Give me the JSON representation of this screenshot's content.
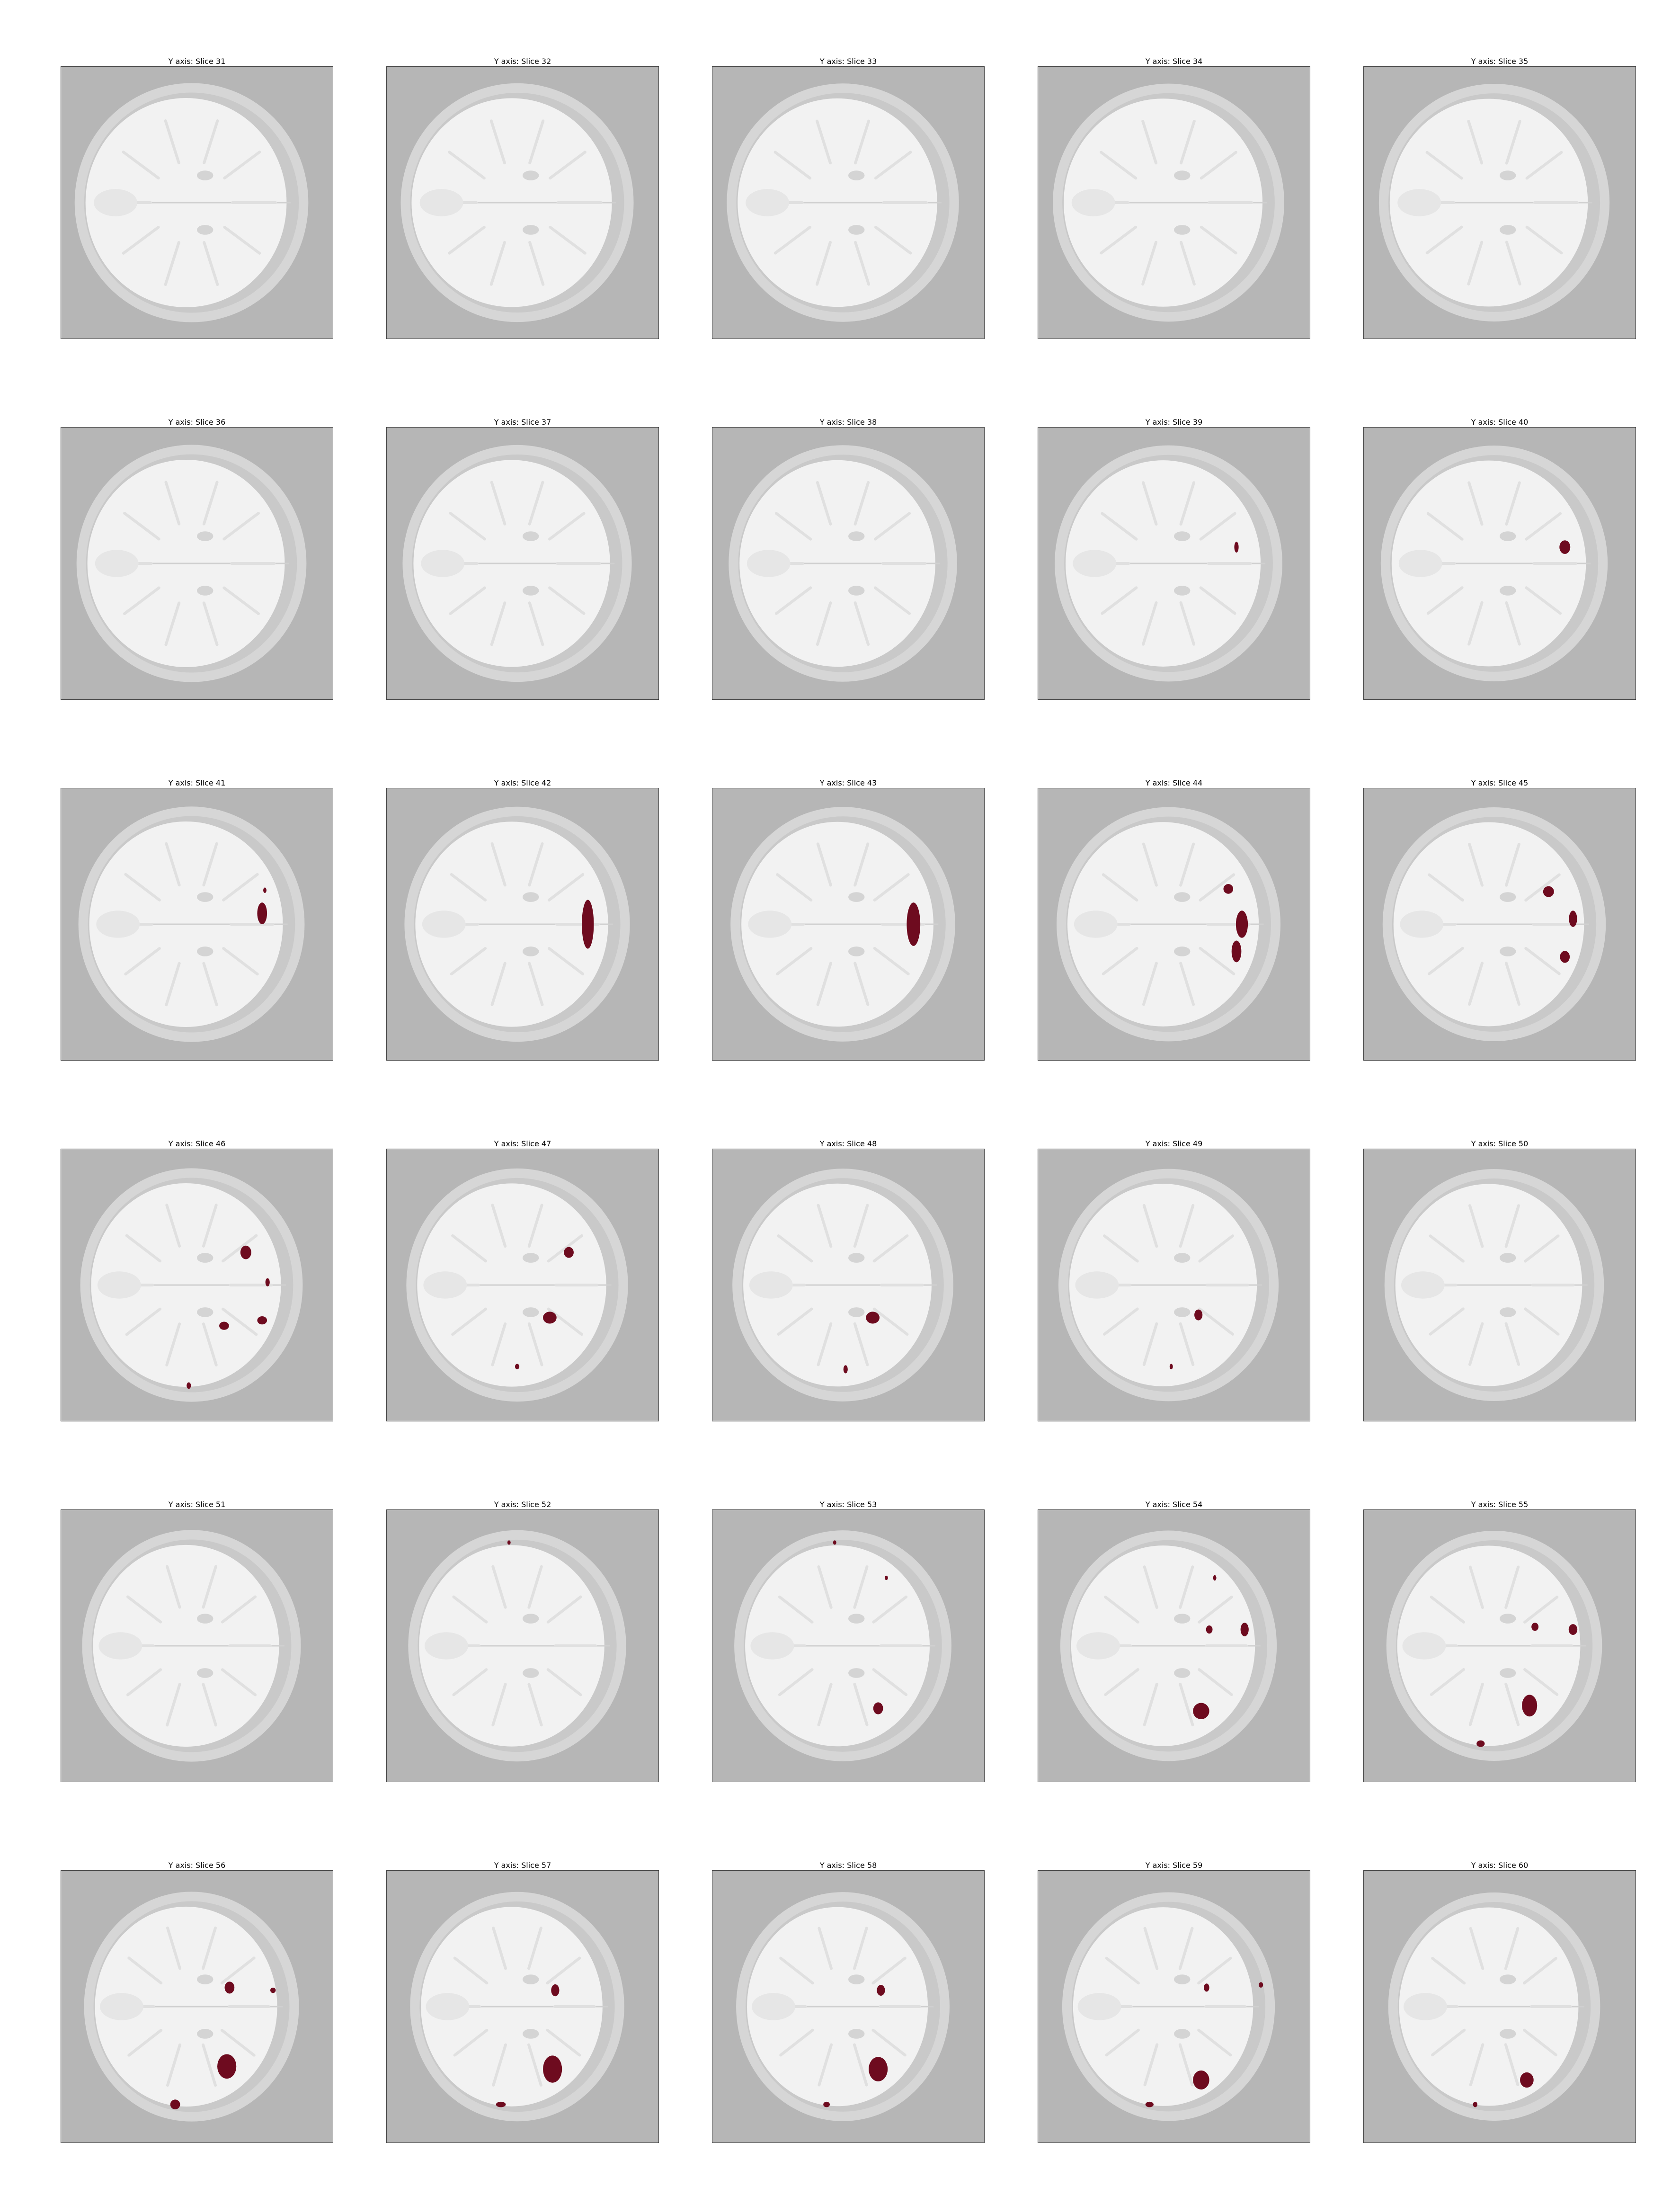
{
  "figure": {
    "axis_name": "Y axis",
    "colors": {
      "background": "#b6b6b6",
      "head_outline": "#d6d6d6",
      "brain": "#f2f2f2",
      "overlay": "#6e0b1f"
    },
    "panels": [
      {
        "title": "Y axis: Slice 31",
        "slice": 31,
        "blobs": []
      },
      {
        "title": "Y axis: Slice 32",
        "slice": 32,
        "blobs": []
      },
      {
        "title": "Y axis: Slice 33",
        "slice": 33,
        "blobs": []
      },
      {
        "title": "Y axis: Slice 34",
        "slice": 34,
        "blobs": []
      },
      {
        "title": "Y axis: Slice 35",
        "slice": 35,
        "blobs": []
      },
      {
        "title": "Y axis: Slice 36",
        "slice": 36,
        "blobs": []
      },
      {
        "title": "Y axis: Slice 37",
        "slice": 37,
        "blobs": []
      },
      {
        "title": "Y axis: Slice 38",
        "slice": 38,
        "blobs": []
      },
      {
        "title": "Y axis: Slice 39",
        "slice": 39,
        "blobs": [
          [
            0.73,
            0.44,
            0.008,
            0.02
          ]
        ]
      },
      {
        "title": "Y axis: Slice 40",
        "slice": 40,
        "blobs": [
          [
            0.74,
            0.44,
            0.02,
            0.025
          ]
        ]
      },
      {
        "title": "Y axis: Slice 41",
        "slice": 41,
        "blobs": [
          [
            0.74,
            0.46,
            0.018,
            0.04
          ],
          [
            0.75,
            0.375,
            0.006,
            0.01
          ]
        ]
      },
      {
        "title": "Y axis: Slice 42",
        "slice": 42,
        "blobs": [
          [
            0.74,
            0.5,
            0.022,
            0.09
          ]
        ]
      },
      {
        "title": "Y axis: Slice 43",
        "slice": 43,
        "blobs": [
          [
            0.74,
            0.5,
            0.025,
            0.08
          ]
        ]
      },
      {
        "title": "Y axis: Slice 44",
        "slice": 44,
        "blobs": [
          [
            0.7,
            0.37,
            0.018,
            0.018
          ],
          [
            0.75,
            0.5,
            0.022,
            0.05
          ],
          [
            0.73,
            0.6,
            0.018,
            0.04
          ]
        ]
      },
      {
        "title": "Y axis: Slice 45",
        "slice": 45,
        "blobs": [
          [
            0.68,
            0.38,
            0.02,
            0.02
          ],
          [
            0.77,
            0.48,
            0.015,
            0.03
          ],
          [
            0.74,
            0.62,
            0.018,
            0.022
          ]
        ]
      },
      {
        "title": "Y axis: Slice 46",
        "slice": 46,
        "blobs": [
          [
            0.68,
            0.38,
            0.02,
            0.025
          ],
          [
            0.76,
            0.49,
            0.008,
            0.015
          ],
          [
            0.6,
            0.65,
            0.018,
            0.015
          ],
          [
            0.74,
            0.63,
            0.018,
            0.015
          ],
          [
            0.47,
            0.87,
            0.008,
            0.012
          ]
        ]
      },
      {
        "title": "Y axis: Slice 47",
        "slice": 47,
        "blobs": [
          [
            0.67,
            0.38,
            0.018,
            0.02
          ],
          [
            0.6,
            0.62,
            0.025,
            0.022
          ],
          [
            0.48,
            0.8,
            0.008,
            0.01
          ]
        ]
      },
      {
        "title": "Y axis: Slice 48",
        "slice": 48,
        "blobs": [
          [
            0.59,
            0.62,
            0.025,
            0.022
          ],
          [
            0.49,
            0.81,
            0.008,
            0.015
          ]
        ]
      },
      {
        "title": "Y axis: Slice 49",
        "slice": 49,
        "blobs": [
          [
            0.59,
            0.61,
            0.015,
            0.02
          ],
          [
            0.49,
            0.8,
            0.006,
            0.01
          ]
        ]
      },
      {
        "title": "Y axis: Slice 50",
        "slice": 50,
        "blobs": []
      },
      {
        "title": "Y axis: Slice 51",
        "slice": 51,
        "blobs": []
      },
      {
        "title": "Y axis: Slice 52",
        "slice": 52,
        "blobs": [
          [
            0.45,
            0.12,
            0.006,
            0.008
          ]
        ]
      },
      {
        "title": "Y axis: Slice 53",
        "slice": 53,
        "blobs": [
          [
            0.45,
            0.12,
            0.006,
            0.008
          ],
          [
            0.64,
            0.25,
            0.006,
            0.008
          ],
          [
            0.61,
            0.73,
            0.018,
            0.022
          ]
        ]
      },
      {
        "title": "Y axis: Slice 54",
        "slice": 54,
        "blobs": [
          [
            0.65,
            0.25,
            0.006,
            0.01
          ],
          [
            0.63,
            0.44,
            0.012,
            0.015
          ],
          [
            0.76,
            0.44,
            0.015,
            0.025
          ],
          [
            0.6,
            0.74,
            0.03,
            0.03
          ]
        ]
      },
      {
        "title": "Y axis: Slice 55",
        "slice": 55,
        "blobs": [
          [
            0.63,
            0.43,
            0.013,
            0.015
          ],
          [
            0.77,
            0.44,
            0.016,
            0.02
          ],
          [
            0.61,
            0.72,
            0.028,
            0.04
          ],
          [
            0.43,
            0.86,
            0.015,
            0.012
          ]
        ]
      },
      {
        "title": "Y axis: Slice 56",
        "slice": 56,
        "blobs": [
          [
            0.62,
            0.43,
            0.018,
            0.022
          ],
          [
            0.78,
            0.44,
            0.01,
            0.01
          ],
          [
            0.61,
            0.72,
            0.035,
            0.045
          ],
          [
            0.42,
            0.86,
            0.018,
            0.018
          ]
        ]
      },
      {
        "title": "Y axis: Slice 57",
        "slice": 57,
        "blobs": [
          [
            0.62,
            0.44,
            0.015,
            0.022
          ],
          [
            0.61,
            0.73,
            0.035,
            0.05
          ],
          [
            0.42,
            0.86,
            0.018,
            0.01
          ]
        ]
      },
      {
        "title": "Y axis: Slice 58",
        "slice": 58,
        "blobs": [
          [
            0.62,
            0.44,
            0.015,
            0.02
          ],
          [
            0.61,
            0.73,
            0.035,
            0.045
          ],
          [
            0.42,
            0.86,
            0.012,
            0.01
          ]
        ]
      },
      {
        "title": "Y axis: Slice 59",
        "slice": 59,
        "blobs": [
          [
            0.62,
            0.43,
            0.01,
            0.015
          ],
          [
            0.82,
            0.42,
            0.008,
            0.01
          ],
          [
            0.6,
            0.77,
            0.03,
            0.035
          ],
          [
            0.41,
            0.86,
            0.015,
            0.01
          ]
        ]
      },
      {
        "title": "Y axis: Slice 60",
        "slice": 60,
        "blobs": [
          [
            0.6,
            0.77,
            0.025,
            0.028
          ],
          [
            0.41,
            0.86,
            0.008,
            0.01
          ]
        ]
      }
    ]
  }
}
